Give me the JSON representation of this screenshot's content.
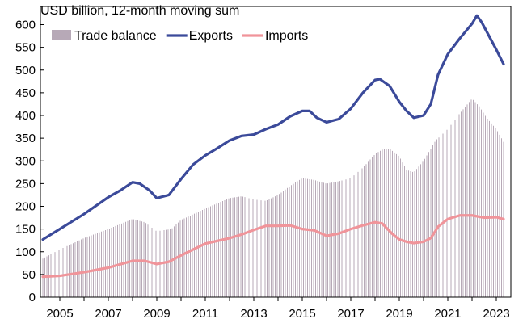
{
  "chart_data": {
    "type": "line",
    "unit_label": "USD billion, 12-month moving sum",
    "x_ticks": [
      "2005",
      "2007",
      "2009",
      "2011",
      "2013",
      "2015",
      "2017",
      "2019",
      "2021",
      "2023"
    ],
    "y_ticks": [
      "0",
      "50",
      "100",
      "150",
      "200",
      "250",
      "300",
      "350",
      "400",
      "450",
      "500",
      "550",
      "600"
    ],
    "ylim": [
      0,
      640
    ],
    "xlim": [
      2004.2,
      2023.6
    ],
    "grid": false,
    "legend": "top-left",
    "series": [
      {
        "name": "Trade balance",
        "kind": "bar",
        "color": "#b7a9b7",
        "points": [
          [
            2004.3,
            85
          ],
          [
            2005.0,
            105
          ],
          [
            2006.0,
            130
          ],
          [
            2007.0,
            150
          ],
          [
            2008.0,
            172
          ],
          [
            2008.5,
            165
          ],
          [
            2009.0,
            145
          ],
          [
            2009.6,
            150
          ],
          [
            2010.0,
            170
          ],
          [
            2011.0,
            195
          ],
          [
            2012.0,
            218
          ],
          [
            2012.5,
            222
          ],
          [
            2013.0,
            215
          ],
          [
            2013.5,
            212
          ],
          [
            2014.0,
            225
          ],
          [
            2014.5,
            245
          ],
          [
            2015.0,
            262
          ],
          [
            2015.5,
            258
          ],
          [
            2016.0,
            250
          ],
          [
            2016.5,
            255
          ],
          [
            2017.0,
            262
          ],
          [
            2017.5,
            285
          ],
          [
            2018.0,
            315
          ],
          [
            2018.3,
            325
          ],
          [
            2018.6,
            327
          ],
          [
            2019.0,
            310
          ],
          [
            2019.3,
            280
          ],
          [
            2019.6,
            275
          ],
          [
            2020.0,
            300
          ],
          [
            2020.5,
            345
          ],
          [
            2021.0,
            370
          ],
          [
            2021.5,
            405
          ],
          [
            2022.0,
            437
          ],
          [
            2022.3,
            420
          ],
          [
            2022.6,
            395
          ],
          [
            2023.0,
            370
          ],
          [
            2023.3,
            342
          ]
        ]
      },
      {
        "name": "Exports",
        "kind": "line",
        "color": "#3b4a9a",
        "points": [
          [
            2004.3,
            127
          ],
          [
            2005.0,
            150
          ],
          [
            2006.0,
            183
          ],
          [
            2007.0,
            220
          ],
          [
            2007.5,
            235
          ],
          [
            2008.0,
            253
          ],
          [
            2008.3,
            250
          ],
          [
            2008.7,
            235
          ],
          [
            2009.0,
            218
          ],
          [
            2009.5,
            225
          ],
          [
            2010.0,
            260
          ],
          [
            2010.5,
            292
          ],
          [
            2011.0,
            312
          ],
          [
            2011.5,
            328
          ],
          [
            2012.0,
            345
          ],
          [
            2012.5,
            355
          ],
          [
            2013.0,
            358
          ],
          [
            2013.5,
            370
          ],
          [
            2014.0,
            380
          ],
          [
            2014.5,
            398
          ],
          [
            2015.0,
            410
          ],
          [
            2015.3,
            410
          ],
          [
            2015.6,
            395
          ],
          [
            2016.0,
            385
          ],
          [
            2016.5,
            392
          ],
          [
            2017.0,
            415
          ],
          [
            2017.5,
            450
          ],
          [
            2018.0,
            478
          ],
          [
            2018.2,
            480
          ],
          [
            2018.6,
            465
          ],
          [
            2019.0,
            430
          ],
          [
            2019.3,
            410
          ],
          [
            2019.6,
            395
          ],
          [
            2020.0,
            400
          ],
          [
            2020.3,
            425
          ],
          [
            2020.6,
            490
          ],
          [
            2021.0,
            535
          ],
          [
            2021.5,
            570
          ],
          [
            2022.0,
            602
          ],
          [
            2022.2,
            620
          ],
          [
            2022.4,
            605
          ],
          [
            2022.7,
            575
          ],
          [
            2023.0,
            545
          ],
          [
            2023.3,
            513
          ]
        ]
      },
      {
        "name": "Imports",
        "kind": "line",
        "color": "#f0949a",
        "points": [
          [
            2004.3,
            45
          ],
          [
            2005.0,
            47
          ],
          [
            2006.0,
            55
          ],
          [
            2007.0,
            65
          ],
          [
            2008.0,
            80
          ],
          [
            2008.5,
            80
          ],
          [
            2009.0,
            73
          ],
          [
            2009.5,
            78
          ],
          [
            2010.0,
            92
          ],
          [
            2011.0,
            118
          ],
          [
            2012.0,
            130
          ],
          [
            2012.5,
            138
          ],
          [
            2013.0,
            148
          ],
          [
            2013.5,
            157
          ],
          [
            2014.0,
            157
          ],
          [
            2014.5,
            158
          ],
          [
            2015.0,
            150
          ],
          [
            2015.5,
            147
          ],
          [
            2016.0,
            135
          ],
          [
            2016.5,
            140
          ],
          [
            2017.0,
            150
          ],
          [
            2017.5,
            158
          ],
          [
            2018.0,
            165
          ],
          [
            2018.3,
            162
          ],
          [
            2018.7,
            140
          ],
          [
            2019.0,
            127
          ],
          [
            2019.3,
            122
          ],
          [
            2019.6,
            119
          ],
          [
            2020.0,
            122
          ],
          [
            2020.3,
            130
          ],
          [
            2020.6,
            155
          ],
          [
            2021.0,
            172
          ],
          [
            2021.5,
            180
          ],
          [
            2022.0,
            180
          ],
          [
            2022.5,
            175
          ],
          [
            2023.0,
            176
          ],
          [
            2023.3,
            172
          ]
        ]
      }
    ]
  }
}
